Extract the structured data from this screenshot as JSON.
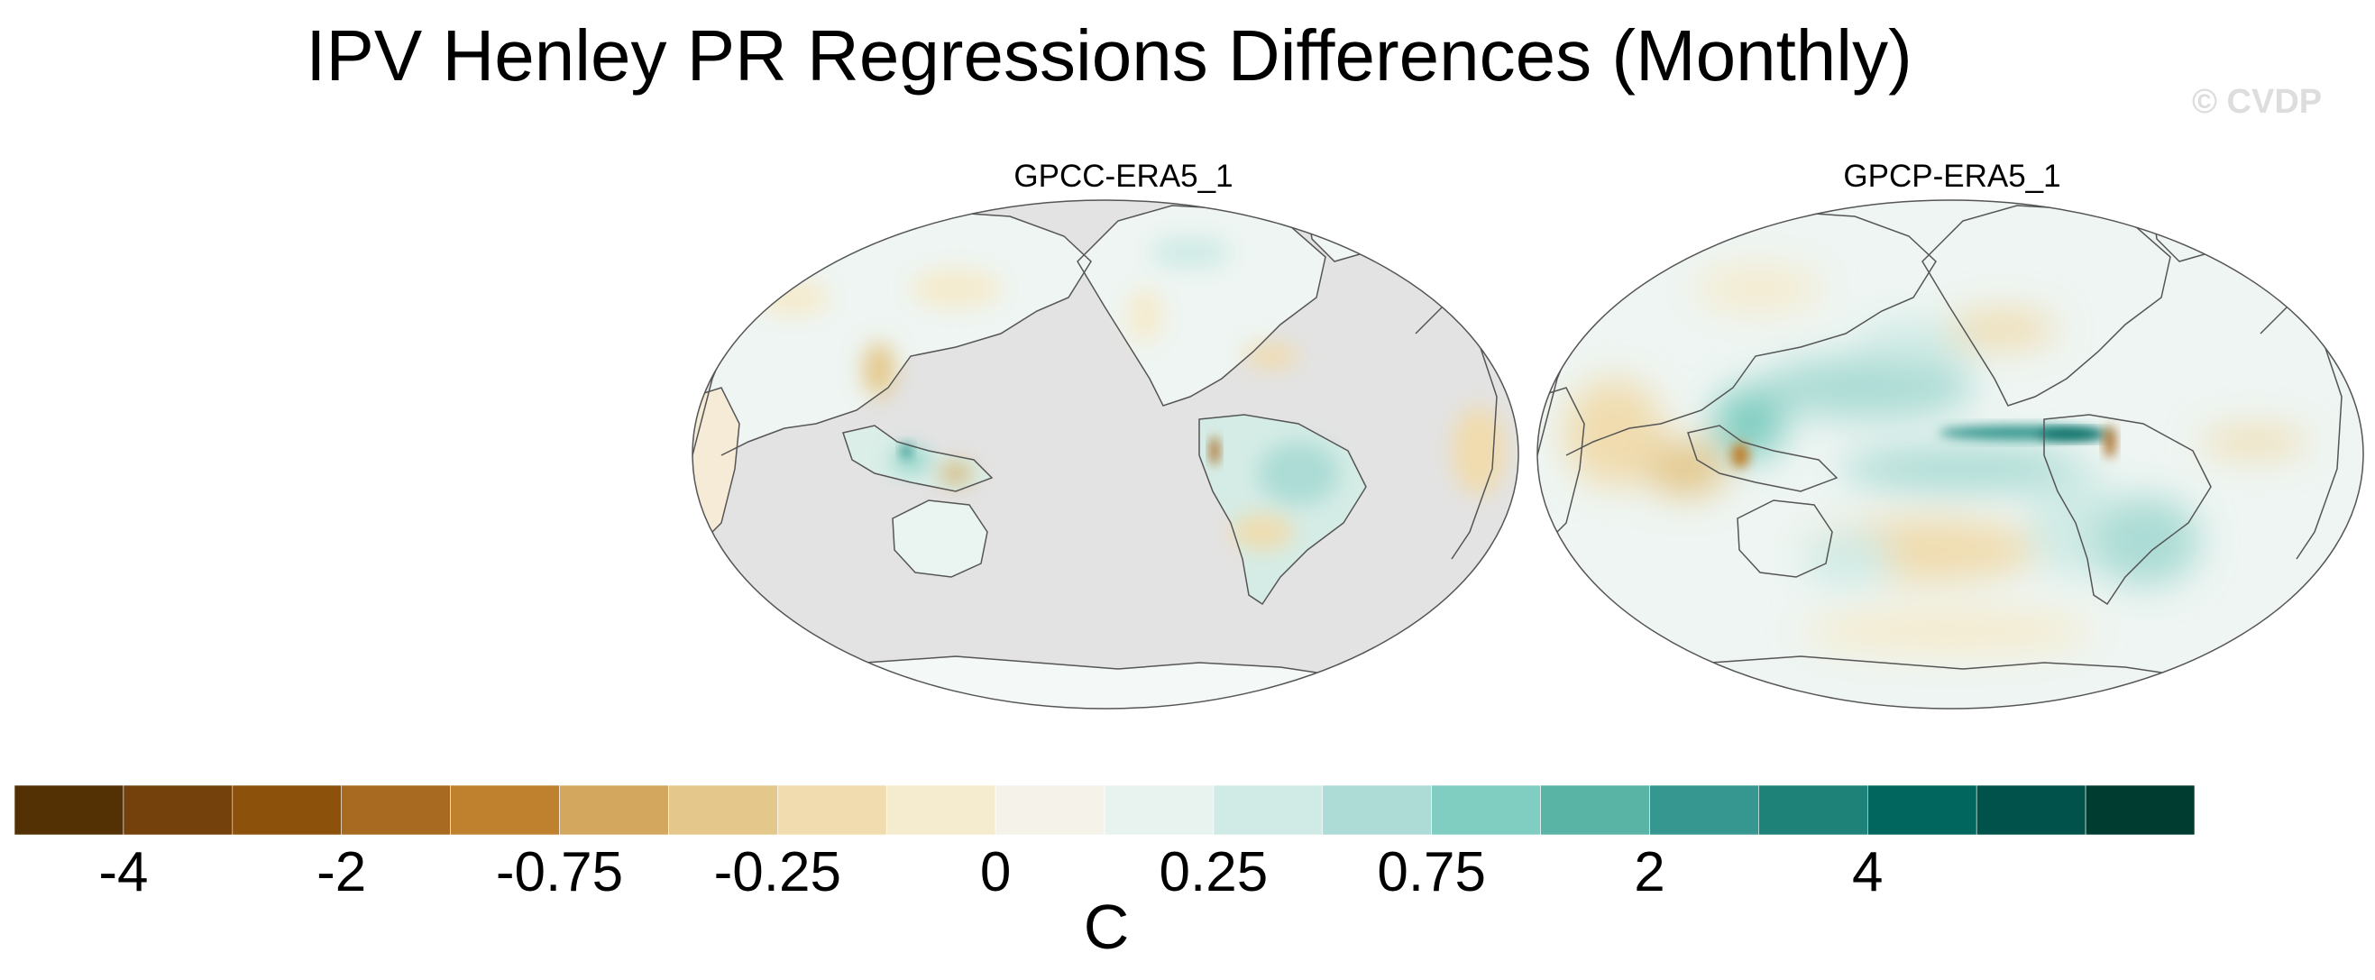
{
  "title": "IPV Henley PR Regressions Differences (Monthly)",
  "watermark": "© CVDP",
  "panels": [
    {
      "name": "GPCC-ERA5_1",
      "background": "land-only",
      "missing_color": "#e3e3e3"
    },
    {
      "name": "GPCP-ERA5_1",
      "background": "global"
    }
  ],
  "colorbar": {
    "colors": [
      "#543005",
      "#74400c",
      "#8c510a",
      "#a86a20",
      "#bf812d",
      "#d3a85e",
      "#e4c78a",
      "#f0dcae",
      "#f5ebce",
      "#f5f2ea",
      "#e8f3f0",
      "#d0ebe6",
      "#acdcd5",
      "#80cdc1",
      "#5ab4a6",
      "#35978f",
      "#1e8278",
      "#01665e",
      "#01524a",
      "#003c30"
    ],
    "tick_labels": [
      "-4",
      "-2",
      "-0.75",
      "-0.25",
      "0",
      "0.25",
      "0.75",
      "2",
      "4"
    ],
    "units": "C"
  }
}
